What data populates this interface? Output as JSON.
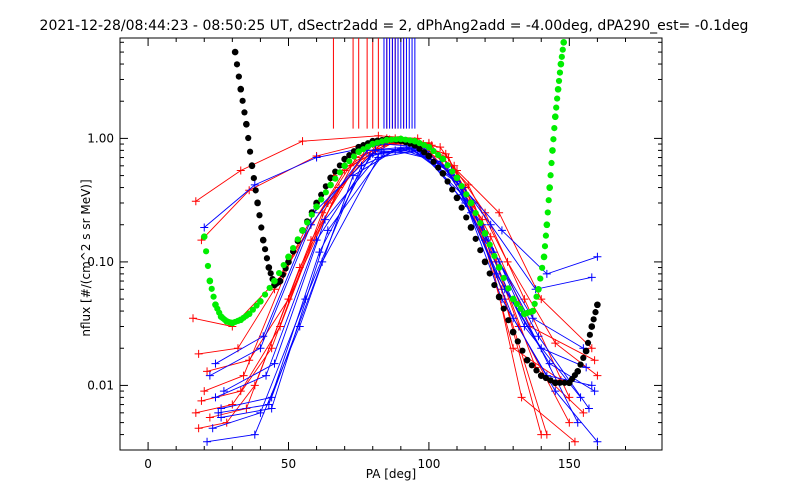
{
  "chart_data": {
    "type": "line",
    "title": "2021-12-28/08:44:23 - 08:50:25 UT, dSectr2add = 2, dPhAng2add = -4.00deg, dPA290_est=  -0.1deg",
    "xlabel": "PA [deg]",
    "ylabel": "nflux [#/(cm^2 s sr MeV)]",
    "xlim": [
      -10,
      183
    ],
    "ylim": [
      0.003,
      6.5
    ],
    "ylog": true,
    "grid": false,
    "x_ticks": [
      0,
      50,
      100,
      150
    ],
    "x_tick_labels": [
      "0",
      "50",
      "100",
      "150"
    ],
    "y_ticks": [
      0.01,
      0.1,
      1.0
    ],
    "y_tick_labels": [
      "0.01",
      "0.10",
      "1.00"
    ],
    "colors": {
      "red": "#ff0000",
      "blue": "#0000ff",
      "black": "#000000",
      "green": "#00ee00"
    },
    "series": [
      {
        "color": "#ff0000",
        "style": "lines+plus",
        "values_desc": "PA/flux samples",
        "lines": [
          [
            [
              17,
              0.31
            ],
            [
              33,
              0.55
            ],
            [
              55,
              0.95
            ],
            [
              82,
              1.05
            ],
            [
              96,
              1.0
            ],
            [
              110,
              0.55
            ],
            [
              125,
              0.25
            ],
            [
              140,
              0.05
            ],
            [
              158,
              0.02
            ]
          ],
          [
            [
              19,
              0.15
            ],
            [
              36,
              0.38
            ],
            [
              60,
              0.72
            ],
            [
              85,
              1.0
            ],
            [
              100,
              0.92
            ],
            [
              114,
              0.42
            ],
            [
              128,
              0.1
            ],
            [
              145,
              0.022
            ],
            [
              160,
              0.012
            ]
          ],
          [
            [
              18,
              0.018
            ],
            [
              32,
              0.02
            ],
            [
              45,
              0.06
            ],
            [
              66,
              0.5
            ],
            [
              86,
              0.98
            ],
            [
              104,
              0.85
            ],
            [
              120,
              0.25
            ],
            [
              134,
              0.05
            ],
            [
              150,
              0.008
            ]
          ],
          [
            [
              20,
              0.009
            ],
            [
              34,
              0.012
            ],
            [
              52,
              0.12
            ],
            [
              72,
              0.6
            ],
            [
              89,
              0.97
            ],
            [
              107,
              0.7
            ],
            [
              124,
              0.1
            ],
            [
              138,
              0.014
            ],
            [
              155,
              0.006
            ]
          ],
          [
            [
              17,
              0.006
            ],
            [
              30,
              0.007
            ],
            [
              44,
              0.02
            ],
            [
              62,
              0.25
            ],
            [
              80,
              0.9
            ],
            [
              98,
              0.9
            ],
            [
              116,
              0.3
            ],
            [
              132,
              0.03
            ],
            [
              150,
              0.005
            ]
          ],
          [
            [
              18,
              0.0045
            ],
            [
              28,
              0.005
            ],
            [
              38,
              0.01
            ],
            [
              58,
              0.15
            ],
            [
              78,
              0.85
            ],
            [
              95,
              0.95
            ],
            [
              113,
              0.4
            ],
            [
              127,
              0.05
            ],
            [
              142,
              0.004
            ]
          ],
          [
            [
              21,
              0.013
            ],
            [
              36,
              0.016
            ],
            [
              50,
              0.05
            ],
            [
              68,
              0.4
            ],
            [
              84,
              0.95
            ],
            [
              101,
              0.88
            ],
            [
              118,
              0.2
            ],
            [
              130,
              0.02
            ],
            [
              147,
              0.011
            ]
          ],
          [
            [
              16,
              0.035
            ],
            [
              30,
              0.03
            ],
            [
              48,
              0.08
            ],
            [
              70,
              0.55
            ],
            [
              88,
              1.0
            ],
            [
              106,
              0.75
            ],
            [
              122,
              0.16
            ],
            [
              136,
              0.03
            ],
            [
              159,
              0.016
            ]
          ],
          [
            [
              19,
              0.0075
            ],
            [
              33,
              0.009
            ],
            [
              47,
              0.03
            ],
            [
              64,
              0.3
            ],
            [
              82,
              0.92
            ],
            [
              100,
              0.9
            ],
            [
              119,
              0.22
            ],
            [
              133,
              0.008
            ],
            [
              152,
              0.0035
            ]
          ],
          [
            [
              22,
              0.0055
            ],
            [
              35,
              0.0065
            ],
            [
              54,
              0.09
            ],
            [
              74,
              0.7
            ],
            [
              90,
              0.98
            ],
            [
              109,
              0.6
            ],
            [
              126,
              0.06
            ],
            [
              140,
              0.004
            ]
          ]
        ],
        "spikes_x": [
          66,
          73,
          75,
          78,
          80,
          82,
          85,
          87,
          88,
          89,
          91
        ]
      },
      {
        "color": "#0000ff",
        "style": "lines+plus",
        "lines": [
          [
            [
              20,
              0.19
            ],
            [
              38,
              0.42
            ],
            [
              60,
              0.7
            ],
            [
              84,
              0.9
            ],
            [
              98,
              0.85
            ],
            [
              112,
              0.4
            ],
            [
              126,
              0.18
            ],
            [
              142,
              0.08
            ],
            [
              160,
              0.11
            ]
          ],
          [
            [
              22,
              0.012
            ],
            [
              40,
              0.02
            ],
            [
              58,
              0.2
            ],
            [
              78,
              0.8
            ],
            [
              92,
              0.85
            ],
            [
              108,
              0.55
            ],
            [
              122,
              0.2
            ],
            [
              138,
              0.06
            ],
            [
              158,
              0.075
            ]
          ],
          [
            [
              24,
              0.008
            ],
            [
              42,
              0.012
            ],
            [
              60,
              0.15
            ],
            [
              80,
              0.75
            ],
            [
              94,
              0.82
            ],
            [
              110,
              0.45
            ],
            [
              124,
              0.08
            ],
            [
              140,
              0.02
            ],
            [
              156,
              0.014
            ]
          ],
          [
            [
              26,
              0.0065
            ],
            [
              44,
              0.008
            ],
            [
              62,
              0.1
            ],
            [
              82,
              0.7
            ],
            [
              96,
              0.8
            ],
            [
              112,
              0.35
            ],
            [
              126,
              0.05
            ],
            [
              142,
              0.012
            ],
            [
              158,
              0.01
            ]
          ],
          [
            [
              23,
              0.0045
            ],
            [
              40,
              0.006
            ],
            [
              56,
              0.05
            ],
            [
              76,
              0.6
            ],
            [
              90,
              0.83
            ],
            [
              106,
              0.6
            ],
            [
              120,
              0.15
            ],
            [
              134,
              0.03
            ],
            [
              154,
              0.008
            ]
          ],
          [
            [
              25,
              0.006
            ],
            [
              43,
              0.007
            ],
            [
              61,
              0.12
            ],
            [
              79,
              0.72
            ],
            [
              93,
              0.84
            ],
            [
              111,
              0.42
            ],
            [
              125,
              0.1
            ],
            [
              139,
              0.025
            ],
            [
              157,
              0.0065
            ]
          ],
          [
            [
              21,
              0.0035
            ],
            [
              38,
              0.004
            ],
            [
              54,
              0.03
            ],
            [
              73,
              0.5
            ],
            [
              88,
              0.8
            ],
            [
              104,
              0.65
            ],
            [
              119,
              0.2
            ],
            [
              133,
              0.04
            ],
            [
              153,
              0.005
            ]
          ],
          [
            [
              27,
              0.009
            ],
            [
              45,
              0.015
            ],
            [
              63,
              0.22
            ],
            [
              83,
              0.78
            ],
            [
              97,
              0.8
            ],
            [
              113,
              0.3
            ],
            [
              127,
              0.06
            ],
            [
              143,
              0.015
            ],
            [
              159,
              0.009
            ]
          ],
          [
            [
              24,
              0.015
            ],
            [
              41,
              0.025
            ],
            [
              59,
              0.25
            ],
            [
              81,
              0.8
            ],
            [
              95,
              0.83
            ],
            [
              109,
              0.5
            ],
            [
              123,
              0.12
            ],
            [
              137,
              0.035
            ],
            [
              155,
              0.02
            ]
          ],
          [
            [
              26,
              0.0055
            ],
            [
              44,
              0.0065
            ],
            [
              64,
              0.18
            ],
            [
              84,
              0.76
            ],
            [
              99,
              0.78
            ],
            [
              115,
              0.25
            ],
            [
              130,
              0.035
            ],
            [
              145,
              0.009
            ],
            [
              160,
              0.0035
            ]
          ]
        ],
        "spikes_x": [
          84,
          85,
          86,
          87,
          88,
          89,
          90,
          91,
          92,
          93,
          94,
          95
        ]
      },
      {
        "color": "#000000",
        "style": "dots",
        "x": [
          31,
          33,
          35,
          37,
          39,
          41,
          43,
          45,
          47,
          50,
          55,
          60,
          65,
          70,
          75,
          80,
          85,
          90,
          95,
          100,
          105,
          110,
          115,
          120,
          125,
          130,
          135,
          140,
          145,
          150,
          153,
          156,
          158,
          160
        ],
        "y": [
          5.0,
          2.5,
          1.3,
          0.6,
          0.3,
          0.15,
          0.09,
          0.065,
          0.07,
          0.1,
          0.18,
          0.3,
          0.48,
          0.68,
          0.85,
          0.95,
          0.98,
          0.96,
          0.88,
          0.72,
          0.52,
          0.33,
          0.19,
          0.1,
          0.052,
          0.027,
          0.016,
          0.012,
          0.0105,
          0.0105,
          0.013,
          0.019,
          0.03,
          0.045
        ]
      },
      {
        "color": "#00ee00",
        "style": "dots",
        "x": [
          20,
          22,
          24,
          26,
          28,
          30,
          33,
          36,
          40,
          45,
          50,
          55,
          60,
          65,
          70,
          75,
          80,
          85,
          90,
          95,
          100,
          105,
          110,
          115,
          120,
          125,
          130,
          134,
          137,
          139,
          141,
          142,
          143,
          144,
          145,
          146,
          147,
          148
        ],
        "y": [
          0.16,
          0.07,
          0.045,
          0.036,
          0.033,
          0.032,
          0.034,
          0.038,
          0.048,
          0.07,
          0.11,
          0.18,
          0.28,
          0.42,
          0.6,
          0.78,
          0.9,
          0.97,
          0.99,
          0.95,
          0.85,
          0.68,
          0.48,
          0.3,
          0.17,
          0.09,
          0.05,
          0.038,
          0.04,
          0.06,
          0.11,
          0.2,
          0.4,
          0.8,
          1.5,
          2.5,
          4.0,
          6.0
        ]
      }
    ]
  }
}
